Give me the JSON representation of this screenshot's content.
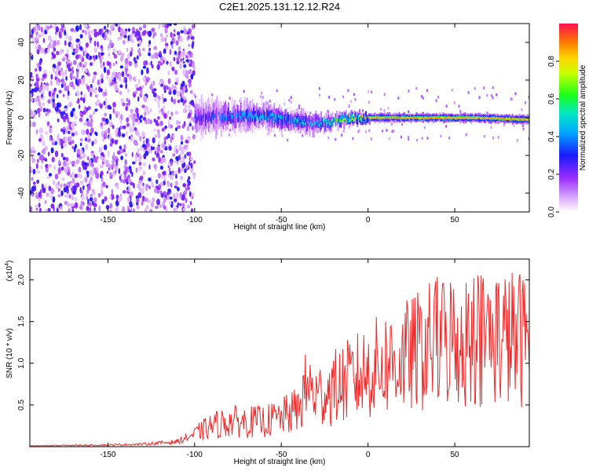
{
  "title": "C2E1.2025.131.12.12.R24",
  "colors": {
    "snr_line": "#ee2b2b",
    "axis": "#000000"
  },
  "chart_data": [
    {
      "type": "heatmap",
      "xlabel": "Height of straight line (km)",
      "ylabel": "Frequency (Hz)",
      "xlim": [
        -195,
        93
      ],
      "ylim": [
        -50,
        50
      ],
      "x_ticks": [
        "-150",
        "-100",
        "-50",
        "0",
        "50"
      ],
      "y_ticks": [
        "-40",
        "-20",
        "0",
        "20",
        "40"
      ],
      "colorbar": {
        "label": "Normalized spectral amplitude",
        "range": [
          0.0,
          1.0
        ],
        "ticks": [
          "0.0",
          "0.2",
          "0.4",
          "0.6",
          "0.8"
        ]
      },
      "trace": {
        "x": [
          -100,
          -80,
          -60,
          -40,
          -30,
          -20,
          -10,
          0,
          20,
          40,
          60,
          93
        ],
        "center_hz": [
          0,
          1,
          1,
          -2,
          -3,
          -2,
          0,
          0,
          0,
          0,
          0,
          -1
        ],
        "amplitude": [
          0.25,
          0.4,
          0.45,
          0.5,
          0.5,
          0.6,
          0.75,
          0.85,
          0.85,
          0.85,
          0.85,
          0.85
        ]
      }
    },
    {
      "type": "line",
      "xlabel": "Height of straight line (km)",
      "ylabel": "SNR (10 * v/v)",
      "y_multiplier": "(x10",
      "y_multiplier_exp": "4",
      "xlim": [
        -195,
        93
      ],
      "ylim": [
        0,
        2.25
      ],
      "x_ticks": [
        "-150",
        "-100",
        "-50",
        "0",
        "50"
      ],
      "y_ticks": [
        "0.5",
        "1.0",
        "1.5",
        "2.0"
      ],
      "series": [
        {
          "x": [
            -195,
            -150,
            -130,
            -110,
            -100,
            -90,
            -80,
            -70,
            -60,
            -50,
            -40,
            -35,
            -30,
            -20,
            -10,
            0,
            10,
            20,
            30,
            40,
            50,
            60,
            70,
            80,
            93
          ],
          "y": [
            0.01,
            0.02,
            0.03,
            0.06,
            0.15,
            0.25,
            0.3,
            0.3,
            0.3,
            0.35,
            0.45,
            0.75,
            0.6,
            0.7,
            0.8,
            0.9,
            1.0,
            1.05,
            1.15,
            1.25,
            1.3,
            1.25,
            1.35,
            1.3,
            1.3
          ]
        }
      ]
    }
  ]
}
